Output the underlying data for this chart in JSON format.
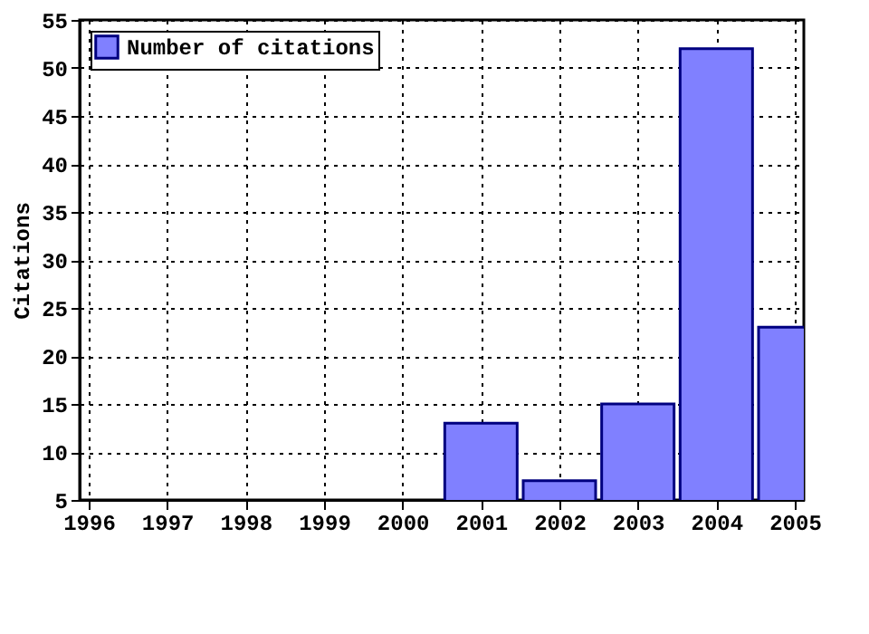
{
  "chart_data": {
    "type": "bar",
    "ylabel": "Citations",
    "x": [
      2001,
      2002,
      2003,
      2004,
      2005
    ],
    "series": [
      {
        "name": "Number of citations",
        "color": "#8080ff",
        "values": [
          13,
          7,
          15,
          52,
          23
        ]
      }
    ],
    "xlim": [
      1996,
      2005
    ],
    "xticks": [
      1996,
      1997,
      1998,
      1999,
      2000,
      2001,
      2002,
      2003,
      2004,
      2005
    ],
    "ylim": [
      5,
      55
    ],
    "yticks": [
      5,
      10,
      15,
      20,
      25,
      30,
      35,
      40,
      45,
      50,
      55
    ],
    "grid": true,
    "legend": "top left"
  }
}
